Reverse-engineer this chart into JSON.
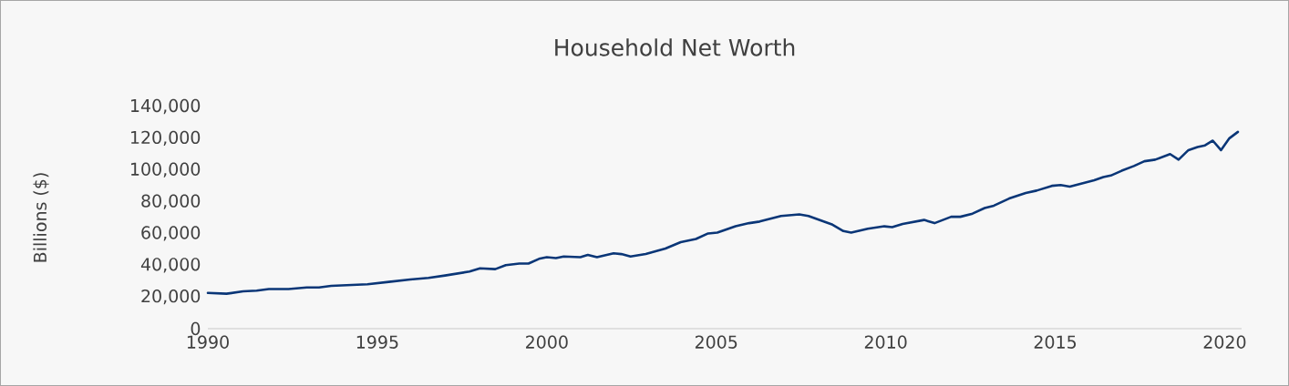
{
  "chart_data": {
    "type": "line",
    "title": "Household Net Worth",
    "ylabel": "Billions ($)",
    "xlim": [
      1990,
      2020.5
    ],
    "xticks": [
      1990,
      1995,
      2000,
      2005,
      2010,
      2015,
      2020
    ],
    "ylim": [
      0,
      140000
    ],
    "yticks": [
      0,
      {
        "value": 20000,
        "label": "20,000"
      },
      {
        "value": 40000,
        "label": "40,000"
      },
      {
        "value": 60000,
        "label": "60,000"
      },
      {
        "value": 80000,
        "label": "80,000"
      },
      {
        "value": 100000,
        "label": "100,000"
      },
      {
        "value": 120000,
        "label": "120,000"
      },
      {
        "value": 140000,
        "label": "140,000"
      }
    ],
    "x": [
      1990,
      1990.55,
      1991.04,
      1991.44,
      1991.8,
      1992.38,
      1992.92,
      1993.28,
      1993.64,
      1994.71,
      1995.34,
      1995.97,
      1996.51,
      1997.0,
      1997.72,
      1998.03,
      1998.48,
      1998.79,
      1999.19,
      1999.46,
      1999.77,
      2000.0,
      2000.27,
      2000.5,
      2000.99,
      2001.21,
      2001.48,
      2001.97,
      2002.2,
      2002.47,
      2002.92,
      2003.5,
      2003.95,
      2004.4,
      2004.76,
      2005.03,
      2005.57,
      2005.97,
      2006.28,
      2006.91,
      2007.45,
      2007.72,
      2008.43,
      2008.75,
      2008.98,
      2009.47,
      2009.96,
      2010.19,
      2010.5,
      2011.13,
      2011.44,
      2011.93,
      2012.2,
      2012.56,
      2012.92,
      2013.19,
      2013.64,
      2014.13,
      2014.45,
      2014.9,
      2015.16,
      2015.43,
      2016.15,
      2016.42,
      2016.64,
      2016.96,
      2017.32,
      2017.63,
      2017.95,
      2018.39,
      2018.64,
      2018.93,
      2019.2,
      2019.42,
      2019.65,
      2019.89,
      2020.14,
      2020.39
    ],
    "series": [
      {
        "color": "#0a3677",
        "values": [
          22500,
          22000,
          23500,
          24000,
          25000,
          25000,
          26000,
          26000,
          27000,
          28000,
          29500,
          31000,
          32000,
          33500,
          36000,
          38000,
          37500,
          40000,
          41000,
          41000,
          44000,
          45000,
          44500,
          45500,
          45000,
          46500,
          45000,
          47500,
          47000,
          45500,
          47000,
          50500,
          54500,
          56500,
          60000,
          60500,
          64500,
          66500,
          67500,
          71000,
          72000,
          71000,
          65500,
          61500,
          60500,
          63000,
          64500,
          64000,
          66000,
          68500,
          66500,
          70500,
          70500,
          72500,
          76000,
          77500,
          82000,
          85500,
          87000,
          90000,
          90500,
          89500,
          93500,
          95500,
          96500,
          99500,
          102500,
          105500,
          106500,
          110000,
          106500,
          112500,
          114500,
          115500,
          118500,
          112500,
          120000,
          124000
        ]
      }
    ]
  }
}
